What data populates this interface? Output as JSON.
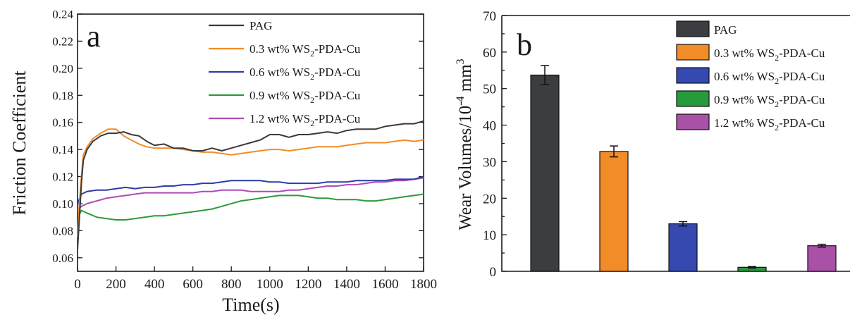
{
  "chart_data": [
    {
      "type": "line",
      "panel_label": "a",
      "xlabel": "Time(s)",
      "ylabel": "Friction Coefficient",
      "xlim": [
        0,
        1800
      ],
      "ylim": [
        0.05,
        0.24
      ],
      "xticks": [
        "0",
        "200",
        "400",
        "600",
        "800",
        "1000",
        "1200",
        "1400",
        "1600",
        "1800"
      ],
      "yticks": [
        "0.06",
        "0.08",
        "0.10",
        "0.12",
        "0.14",
        "0.16",
        "0.18",
        "0.20",
        "0.22",
        "0.24"
      ],
      "legend_position": "top-right",
      "series": [
        {
          "name": "PAG",
          "legend_parts": [
            "PAG"
          ],
          "color": "#3a3a3a",
          "x": [
            0,
            10,
            20,
            30,
            50,
            80,
            120,
            160,
            200,
            240,
            280,
            320,
            360,
            400,
            450,
            500,
            550,
            600,
            650,
            700,
            750,
            800,
            850,
            900,
            950,
            1000,
            1050,
            1100,
            1150,
            1200,
            1250,
            1300,
            1350,
            1400,
            1450,
            1500,
            1550,
            1600,
            1650,
            1700,
            1750,
            1800
          ],
          "y": [
            0.066,
            0.09,
            0.115,
            0.132,
            0.14,
            0.146,
            0.15,
            0.152,
            0.152,
            0.153,
            0.151,
            0.15,
            0.146,
            0.143,
            0.144,
            0.141,
            0.141,
            0.139,
            0.139,
            0.141,
            0.139,
            0.141,
            0.143,
            0.145,
            0.147,
            0.151,
            0.151,
            0.149,
            0.151,
            0.151,
            0.152,
            0.153,
            0.152,
            0.154,
            0.155,
            0.155,
            0.155,
            0.157,
            0.158,
            0.159,
            0.159,
            0.161
          ]
        },
        {
          "name": "0.3 wt% WS2-PDA-Cu",
          "legend_parts": [
            "0.3 wt% WS",
            "2",
            "-PDA-Cu"
          ],
          "color": "#f28c28",
          "x": [
            0,
            10,
            20,
            30,
            50,
            80,
            120,
            160,
            200,
            240,
            280,
            320,
            360,
            400,
            450,
            500,
            550,
            600,
            650,
            700,
            750,
            800,
            850,
            900,
            950,
            1000,
            1050,
            1100,
            1150,
            1200,
            1250,
            1300,
            1350,
            1400,
            1450,
            1500,
            1550,
            1600,
            1650,
            1700,
            1750,
            1800
          ],
          "y": [
            0.075,
            0.1,
            0.12,
            0.136,
            0.142,
            0.148,
            0.152,
            0.155,
            0.155,
            0.15,
            0.147,
            0.144,
            0.142,
            0.141,
            0.141,
            0.141,
            0.14,
            0.139,
            0.138,
            0.138,
            0.137,
            0.136,
            0.137,
            0.138,
            0.139,
            0.14,
            0.14,
            0.139,
            0.14,
            0.141,
            0.142,
            0.142,
            0.142,
            0.143,
            0.144,
            0.145,
            0.145,
            0.145,
            0.146,
            0.147,
            0.146,
            0.147
          ]
        },
        {
          "name": "0.6 wt% WS2-PDA-Cu",
          "legend_parts": [
            "0.6 wt% WS",
            "2",
            "-PDA-Cu"
          ],
          "color": "#2c3ea6",
          "x": [
            0,
            20,
            50,
            100,
            150,
            200,
            250,
            300,
            350,
            400,
            450,
            500,
            550,
            600,
            650,
            700,
            750,
            800,
            850,
            900,
            950,
            1000,
            1050,
            1100,
            1150,
            1200,
            1250,
            1300,
            1350,
            1400,
            1450,
            1500,
            1550,
            1600,
            1650,
            1700,
            1750,
            1800
          ],
          "y": [
            0.1,
            0.107,
            0.109,
            0.11,
            0.11,
            0.111,
            0.112,
            0.111,
            0.112,
            0.112,
            0.113,
            0.113,
            0.114,
            0.114,
            0.115,
            0.115,
            0.116,
            0.117,
            0.117,
            0.117,
            0.117,
            0.116,
            0.116,
            0.115,
            0.115,
            0.115,
            0.115,
            0.116,
            0.116,
            0.116,
            0.117,
            0.117,
            0.117,
            0.117,
            0.118,
            0.118,
            0.118,
            0.12
          ]
        },
        {
          "name": "0.9 wt% WS2-PDA-Cu",
          "legend_parts": [
            "0.9 wt% WS",
            "2",
            "-PDA-Cu"
          ],
          "color": "#2e9a3a",
          "x": [
            0,
            10,
            20,
            50,
            100,
            150,
            200,
            250,
            300,
            350,
            400,
            450,
            500,
            550,
            600,
            650,
            700,
            750,
            800,
            850,
            900,
            950,
            1000,
            1050,
            1100,
            1150,
            1200,
            1250,
            1300,
            1350,
            1400,
            1450,
            1500,
            1550,
            1600,
            1650,
            1700,
            1750,
            1800
          ],
          "y": [
            0.08,
            0.092,
            0.095,
            0.093,
            0.09,
            0.089,
            0.088,
            0.088,
            0.089,
            0.09,
            0.091,
            0.091,
            0.092,
            0.093,
            0.094,
            0.095,
            0.096,
            0.098,
            0.1,
            0.102,
            0.103,
            0.104,
            0.105,
            0.106,
            0.106,
            0.106,
            0.105,
            0.104,
            0.104,
            0.103,
            0.103,
            0.103,
            0.102,
            0.102,
            0.103,
            0.104,
            0.105,
            0.106,
            0.107
          ]
        },
        {
          "name": "1.2 wt% WS2-PDA-Cu",
          "legend_parts": [
            "1.2 wt% WS",
            "2",
            "-PDA-Cu"
          ],
          "color": "#b04ab8",
          "x": [
            0,
            20,
            50,
            100,
            150,
            200,
            250,
            300,
            350,
            400,
            450,
            500,
            550,
            600,
            650,
            700,
            750,
            800,
            850,
            900,
            950,
            1000,
            1050,
            1100,
            1150,
            1200,
            1250,
            1300,
            1350,
            1400,
            1450,
            1500,
            1550,
            1600,
            1650,
            1700,
            1750,
            1800
          ],
          "y": [
            0.095,
            0.098,
            0.1,
            0.102,
            0.104,
            0.105,
            0.106,
            0.107,
            0.108,
            0.108,
            0.108,
            0.108,
            0.108,
            0.108,
            0.109,
            0.109,
            0.11,
            0.11,
            0.11,
            0.109,
            0.109,
            0.109,
            0.109,
            0.11,
            0.11,
            0.111,
            0.112,
            0.113,
            0.113,
            0.114,
            0.114,
            0.115,
            0.116,
            0.116,
            0.117,
            0.117,
            0.118,
            0.119
          ]
        }
      ]
    },
    {
      "type": "bar",
      "panel_label": "b",
      "ylabel_parts": [
        "Wear Volumes/10",
        "-4",
        " mm",
        "3"
      ],
      "ylim": [
        0,
        70
      ],
      "yticks": [
        "0",
        "10",
        "20",
        "30",
        "40",
        "50",
        "60",
        "70"
      ],
      "legend_position": "top-right",
      "categories": [
        "PAG",
        "0.3 wt% WS2-PDA-Cu",
        "0.6 wt% WS2-PDA-Cu",
        "0.9 wt% WS2-PDA-Cu",
        "1.2 wt% WS2-PDA-Cu"
      ],
      "legend_parts": [
        [
          "PAG"
        ],
        [
          "0.3 wt% WS",
          "2",
          "-PDA-Cu"
        ],
        [
          "0.6 wt% WS",
          "2",
          "-PDA-Cu"
        ],
        [
          "0.9 wt% WS",
          "2",
          "-PDA-Cu"
        ],
        [
          "1.2 wt% WS",
          "2",
          "-PDA-Cu"
        ]
      ],
      "values": [
        53.7,
        32.8,
        13.0,
        1.1,
        7.0
      ],
      "errors": [
        2.6,
        1.5,
        0.6,
        0.2,
        0.4
      ],
      "colors": [
        "#3b3d40",
        "#f28c28",
        "#3549b0",
        "#279a3c",
        "#a951a6"
      ]
    }
  ]
}
